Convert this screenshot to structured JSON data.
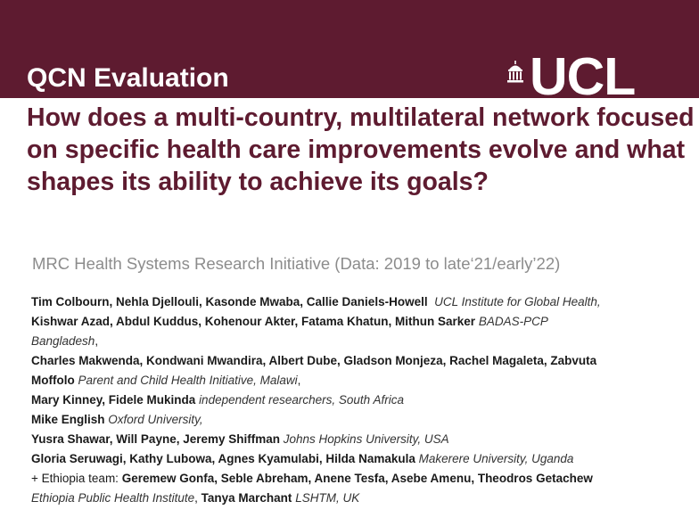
{
  "header": {
    "title": "QCN Evaluation",
    "logo_text": "UCL",
    "banner_color": "#5e1b30",
    "logo_icon": "portico-icon"
  },
  "question": "How does a multi-country, multilateral network focused on specific health care improvements evolve and what shapes its ability to achieve its goals?",
  "subtitle": "MRC Health Systems Research Initiative (Data: 2019 to late‘21/early’22)",
  "authors": {
    "l1_names": "Tim Colbourn, Nehla Djellouli, Kasonde Mwaba, Callie Daniels-Howell",
    "l1_affil": "UCL Institute for Global Health,",
    "l2_names": "Kishwar Azad, Abdul Kuddus, Kohenour Akter, Fatama Khatun, Mithun Sarker",
    "l2_affil": "BADAS-PCP",
    "l3_affil": "Bangladesh",
    "l3_sep": ",",
    "l4_names": "Charles Makwenda, Kondwani Mwandira, Albert Dube, Gladson Monjeza, Rachel Magaleta, Zabvuta",
    "l5_names": "Moffolo",
    "l5_affil": "Parent and Child Health Initiative, Malawi",
    "l5_sep": ",",
    "l6_names": "Mary Kinney, Fidele Mukinda",
    "l6_affil": "independent researchers, South Africa",
    "l7_names": "Mike English",
    "l7_affil": "Oxford University,",
    "l8_names": "Yusra Shawar, Will Payne, Jeremy Shiffman",
    "l8_affil": "Johns Hopkins University, USA",
    "l9_names": "Gloria Seruwagi, Kathy Lubowa, Agnes Kyamulabi, Hilda Namakula",
    "l9_affil": "Makerere University, Uganda",
    "l10_prefix": "+ Ethiopia team:",
    "l10_names": "Geremew Gonfa, Seble Abreham, Anene Tesfa, Asebe Amenu, Theodros Getachew",
    "l11_affil": "Ethiopia Public Health Institute",
    "l11_sep": ",",
    "l11_names": "Tanya Marchant",
    "l11_affil2": "LSHTM, UK"
  }
}
